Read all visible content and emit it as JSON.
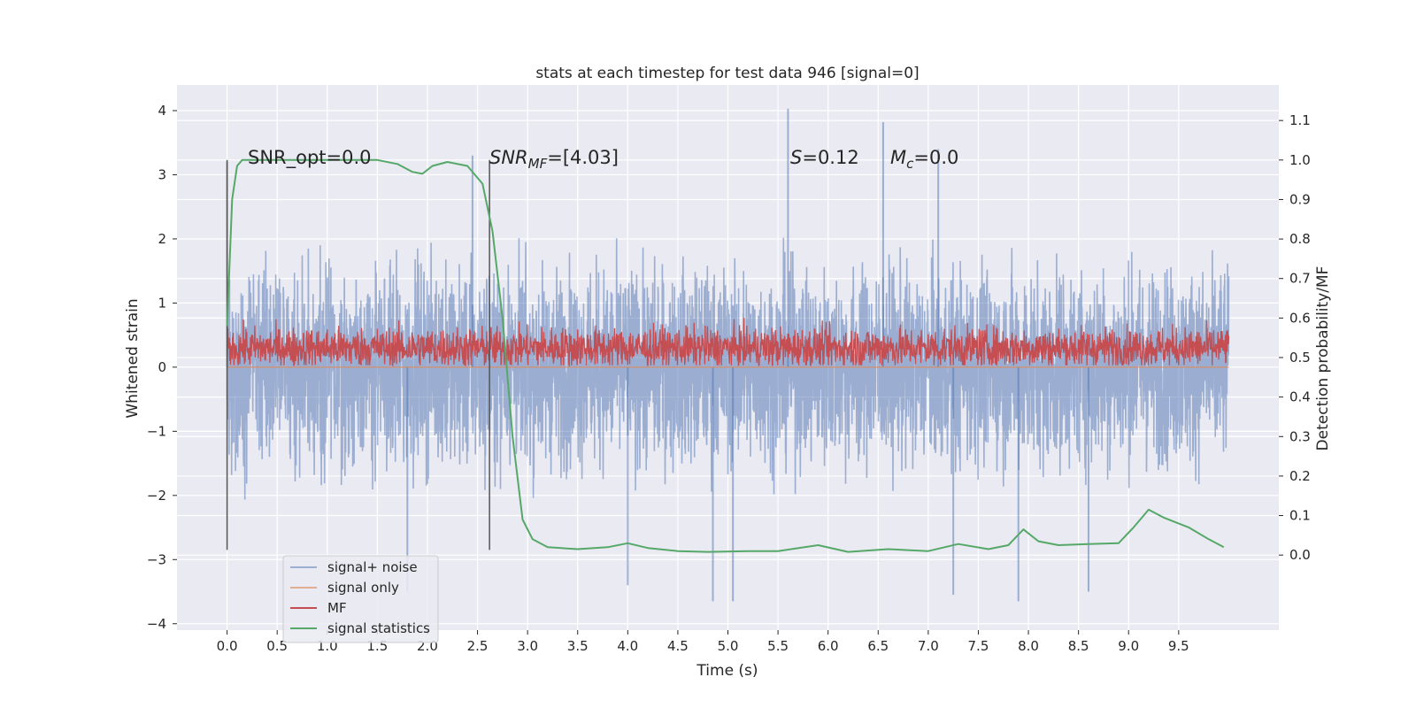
{
  "chart_data": {
    "type": "line",
    "title": "stats at each timestep for test data 946 [signal=0]",
    "xlabel": "Time (s)",
    "ylabel_left": "Whitened strain",
    "ylabel_right": "Detection probability/MF",
    "xlim": [
      -0.5,
      10.5
    ],
    "ylim_left": [
      -4.1,
      4.4
    ],
    "ylim_right": [
      -0.19,
      1.19
    ],
    "x_ticks": [
      0.0,
      0.5,
      1.0,
      1.5,
      2.0,
      2.5,
      3.0,
      3.5,
      4.0,
      4.5,
      5.0,
      5.5,
      6.0,
      6.5,
      7.0,
      7.5,
      8.0,
      8.5,
      9.0,
      9.5
    ],
    "x_tick_labels": [
      "0.0",
      "0.5",
      "1.0",
      "1.5",
      "2.0",
      "2.5",
      "3.0",
      "3.5",
      "4.0",
      "4.5",
      "5.0",
      "5.5",
      "6.0",
      "6.5",
      "7.0",
      "7.5",
      "8.0",
      "8.5",
      "9.0",
      "9.5"
    ],
    "y_left_ticks": [
      4,
      3,
      2,
      1,
      0,
      -1,
      -2,
      -3,
      -4
    ],
    "y_left_tick_labels": [
      "4",
      "3",
      "2",
      "1",
      "0",
      "−1",
      "−2",
      "−3",
      "−4"
    ],
    "y_right_ticks": [
      1.1,
      1.0,
      0.9,
      0.8,
      0.7,
      0.6,
      0.5,
      0.4,
      0.3,
      0.2,
      0.1,
      0.0
    ],
    "y_right_tick_labels": [
      "1.1",
      "1.0",
      "0.9",
      "0.8",
      "0.7",
      "0.6",
      "0.5",
      "0.4",
      "0.3",
      "0.2",
      "0.1",
      "0.0"
    ],
    "grid": true,
    "legend_position": "lower-left",
    "colors": {
      "background": "#eaeaf2",
      "signal_noise": "#4c72b0",
      "signal_only": "#dd8452",
      "mf": "#c44e52",
      "stats": "#55a868",
      "vline": "#555555"
    },
    "series": [
      {
        "name": "signal+ noise",
        "axis": "left",
        "description_kind": "noise band",
        "x_range": [
          0.0,
          10.0
        ],
        "envelope_upper": 2.2,
        "envelope_lower": -2.1,
        "peaks": [
          [
            5.6,
            4.03
          ],
          [
            6.55,
            3.82
          ],
          [
            7.1,
            3.4
          ],
          [
            0.0,
            3.2
          ],
          [
            2.45,
            3.3
          ]
        ],
        "troughs": [
          [
            4.85,
            -3.65
          ],
          [
            5.05,
            -3.65
          ],
          [
            7.25,
            -3.55
          ],
          [
            1.8,
            -3.5
          ],
          [
            7.9,
            -3.65
          ],
          [
            8.6,
            -3.5
          ],
          [
            4.0,
            -3.4
          ]
        ]
      },
      {
        "name": "signal only",
        "axis": "left",
        "x": [
          0.0,
          10.0
        ],
        "values": [
          0.0,
          0.0
        ]
      },
      {
        "name": "MF",
        "axis": "left",
        "x_range": [
          0.0,
          10.0
        ],
        "band_center": 0.3,
        "band_upper": 0.6,
        "band_lower": 0.05
      },
      {
        "name": "signal statistics",
        "axis": "right",
        "x": [
          0.0,
          0.05,
          0.1,
          0.15,
          0.25,
          0.5,
          1.0,
          1.5,
          1.7,
          1.85,
          1.95,
          2.05,
          2.2,
          2.4,
          2.55,
          2.65,
          2.75,
          2.85,
          2.95,
          3.05,
          3.2,
          3.5,
          3.8,
          4.0,
          4.2,
          4.5,
          4.8,
          5.2,
          5.5,
          5.9,
          6.2,
          6.6,
          7.0,
          7.3,
          7.6,
          7.8,
          7.95,
          8.1,
          8.3,
          8.6,
          8.9,
          9.05,
          9.2,
          9.35,
          9.6,
          9.8,
          9.95
        ],
        "values": [
          0.58,
          0.9,
          0.985,
          1.0,
          1.0,
          1.0,
          1.0,
          1.0,
          0.99,
          0.97,
          0.965,
          0.985,
          0.995,
          0.985,
          0.94,
          0.82,
          0.6,
          0.3,
          0.09,
          0.04,
          0.02,
          0.015,
          0.02,
          0.03,
          0.018,
          0.01,
          0.008,
          0.01,
          0.01,
          0.025,
          0.008,
          0.015,
          0.01,
          0.028,
          0.015,
          0.025,
          0.065,
          0.035,
          0.025,
          0.028,
          0.03,
          0.07,
          0.115,
          0.095,
          0.07,
          0.04,
          0.02
        ]
      }
    ],
    "vlines": [
      0.0,
      2.62
    ],
    "annotations": [
      {
        "name": "snr-opt",
        "parts": [
          {
            "t": "SNR_opt=0.0",
            "style": "normal"
          }
        ]
      },
      {
        "name": "snr-mf",
        "parts": [
          {
            "t": "SNR",
            "style": "italic"
          },
          {
            "t": "MF",
            "style": "italic-sub"
          },
          {
            "t": "=[4.03]",
            "style": "normal"
          }
        ]
      },
      {
        "name": "s-value",
        "parts": [
          {
            "t": "S",
            "style": "italic"
          },
          {
            "t": "=0.12",
            "style": "normal"
          }
        ]
      },
      {
        "name": "mc-value",
        "parts": [
          {
            "t": "M",
            "style": "italic"
          },
          {
            "t": "c",
            "style": "italic-sub"
          },
          {
            "t": "=0.0",
            "style": "normal"
          }
        ]
      }
    ],
    "legend": [
      "signal+ noise",
      "signal only",
      "MF",
      "signal statistics"
    ]
  }
}
